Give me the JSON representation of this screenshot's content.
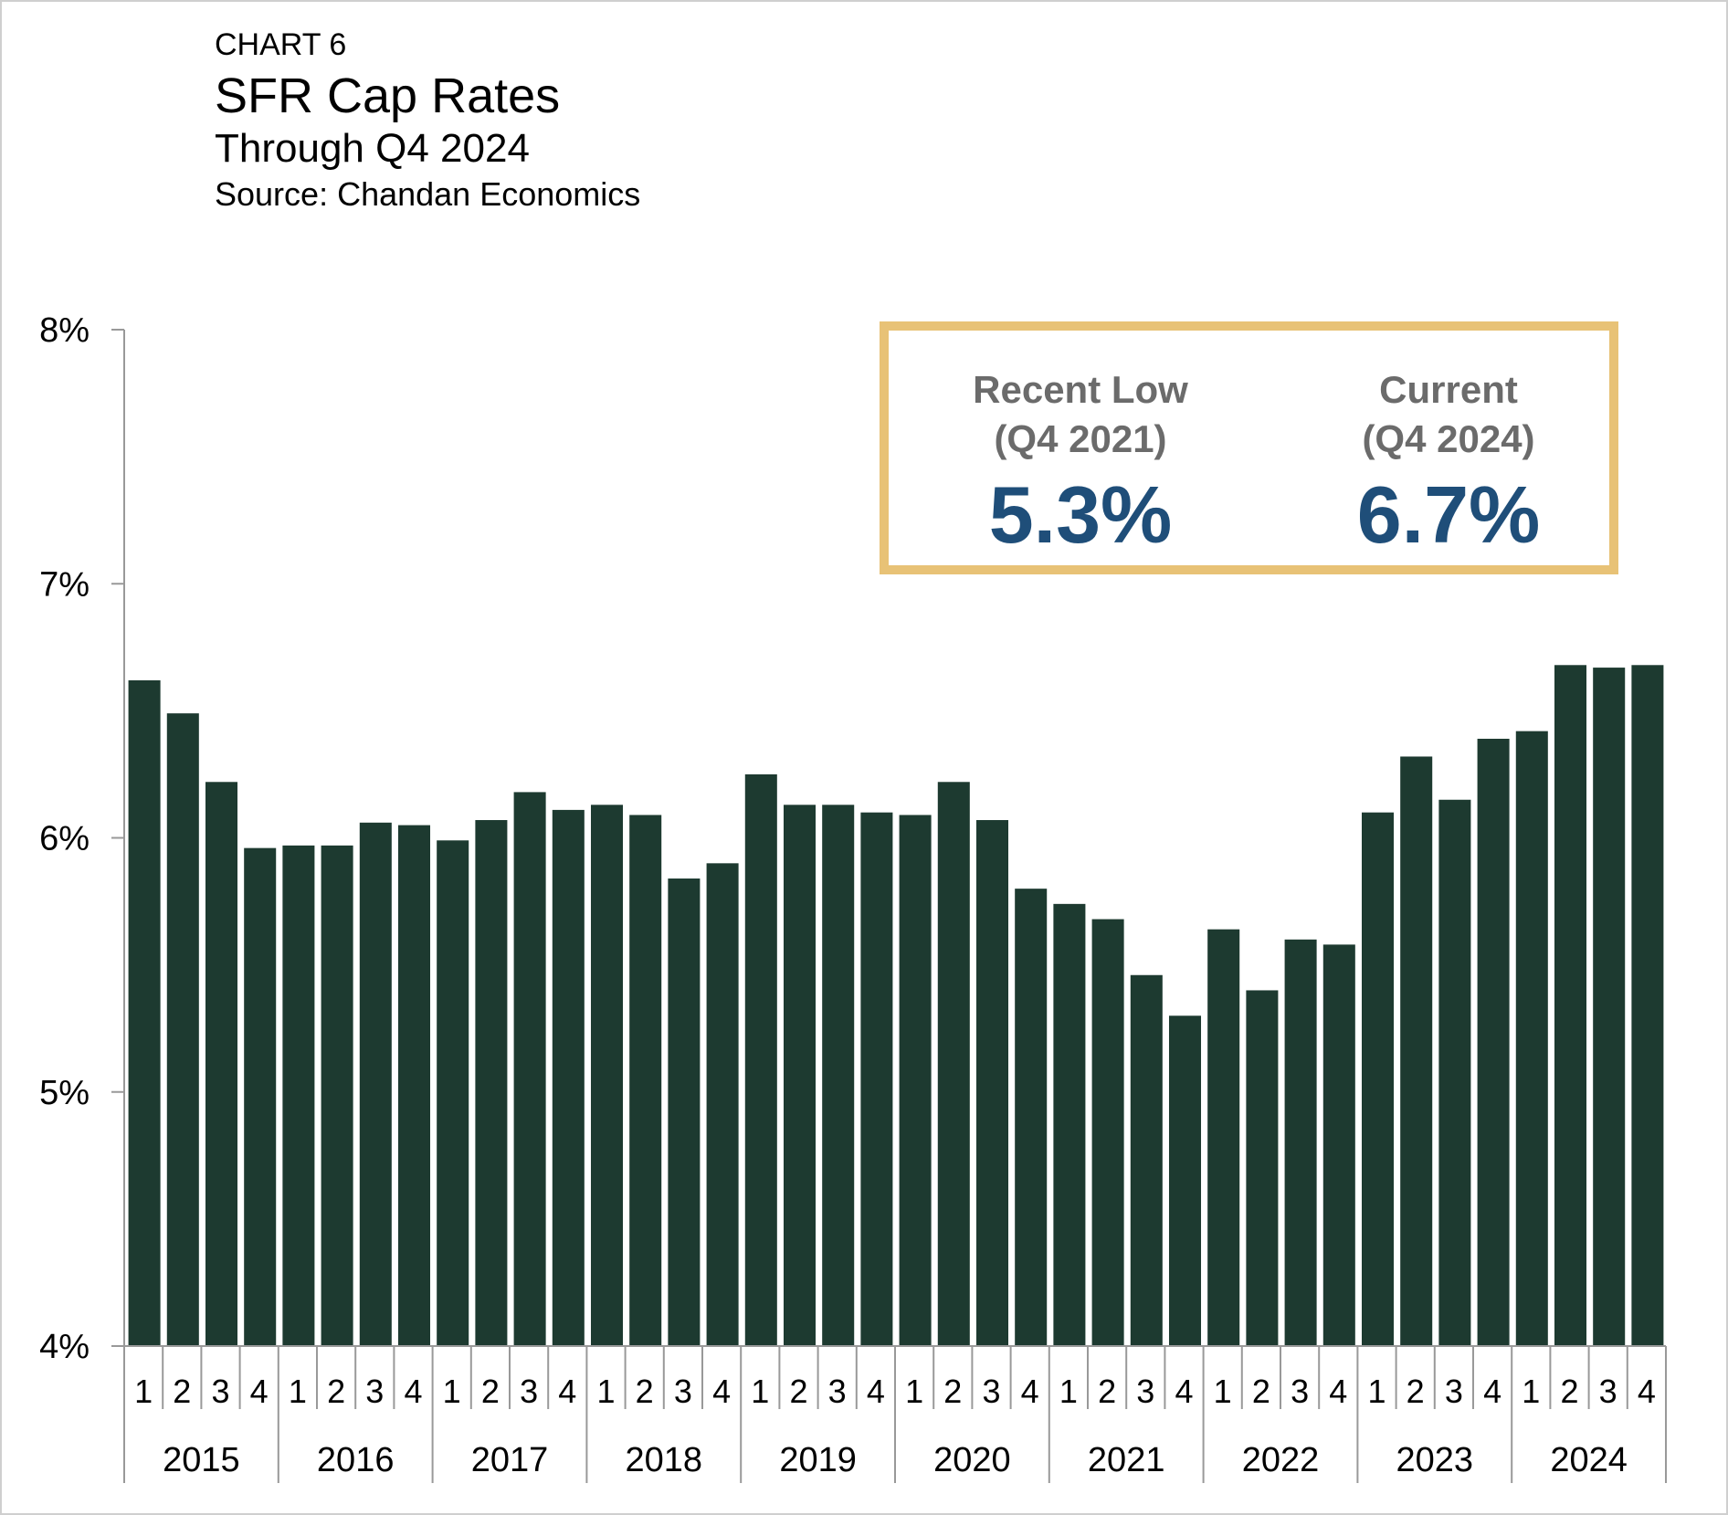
{
  "header": {
    "label": "CHART 6",
    "title": "SFR Cap Rates",
    "subtitle": "Through Q4 2024",
    "source": "Source: Chandan Economics"
  },
  "callout": {
    "recent_low": {
      "label_line1": "Recent Low",
      "label_line2": "(Q4 2021)",
      "value": "5.3%"
    },
    "current": {
      "label_line1": "Current",
      "label_line2": "(Q4 2024)",
      "value": "6.7%"
    }
  },
  "colors": {
    "bar": "#1d3a30",
    "accent_border": "#e8c276",
    "value_text": "#1f4e79",
    "label_text": "#6b6b6b",
    "axis": "#999999"
  },
  "chart_data": {
    "type": "bar",
    "ylim": [
      4,
      8
    ],
    "y_ticks": [
      4,
      5,
      6,
      7,
      8
    ],
    "y_tick_labels": [
      "4%",
      "5%",
      "6%",
      "7%",
      "8%"
    ],
    "years": [
      "2015",
      "2016",
      "2017",
      "2018",
      "2019",
      "2020",
      "2021",
      "2022",
      "2023",
      "2024"
    ],
    "quarters": [
      "1",
      "2",
      "3",
      "4"
    ],
    "series": [
      {
        "values": [
          6.62,
          6.49,
          6.22,
          5.96,
          5.97,
          5.97,
          6.06,
          6.05,
          5.99,
          6.07,
          6.18,
          6.11,
          6.13,
          6.09,
          5.84,
          5.9,
          6.25,
          6.13,
          6.13,
          6.1,
          6.09,
          6.22,
          6.07,
          5.8,
          5.74,
          5.68,
          5.46,
          5.3,
          5.64,
          5.4,
          5.6,
          5.58,
          6.1,
          6.32,
          6.15,
          6.39,
          6.42,
          6.68,
          6.67,
          6.68
        ]
      }
    ]
  }
}
